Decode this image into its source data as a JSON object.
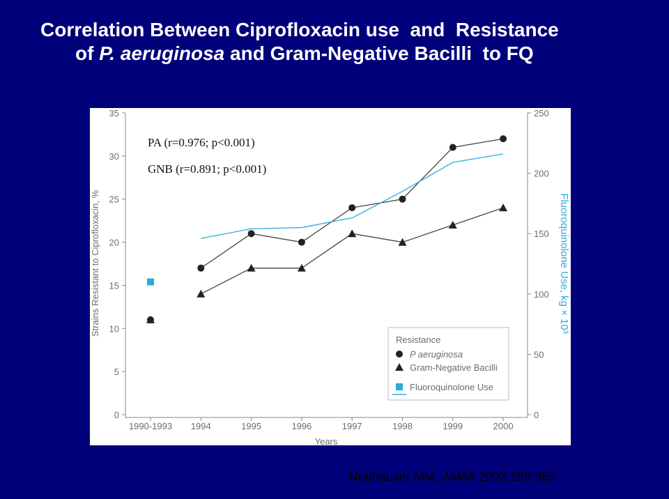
{
  "slide": {
    "title": {
      "line1": "Correlation Between Ciprofloxacin use  and  Resistance",
      "line2": [
        "of ",
        "P. aeruginosa",
        " and Gram-Negative Bacilli  to FQ"
      ]
    },
    "citation": [
      "Neuhauser MM, ",
      "JAMA",
      " 2003;289:885"
    ]
  },
  "chart_data": {
    "type": "line",
    "annotations": [
      "PA (r=0.976; p<0.001)",
      "GNB (r=0.891; p<0.001)"
    ],
    "x_label": "Years",
    "y_label": "Strains Resistant to Ciprofloxacin, %",
    "y2_label": "Fluoroquinolone Use, kg × 10³",
    "legend_title": "Resistance",
    "legend": "lower right",
    "categories": [
      "1990-1993",
      "1994",
      "1995",
      "1996",
      "1997",
      "1998",
      "1999",
      "2000"
    ],
    "ylim": [
      0,
      35
    ],
    "yticks": [
      0,
      5,
      10,
      15,
      20,
      25,
      30,
      35
    ],
    "y2lim": [
      0,
      250
    ],
    "y2ticks": [
      0,
      50,
      100,
      150,
      200,
      250
    ],
    "series": [
      {
        "name": "P aeruginosa",
        "color": "#222222",
        "marker": "circle",
        "values": [
          11,
          17,
          21,
          20,
          24,
          25,
          31,
          32
        ]
      },
      {
        "name": "Gram-Negative Bacilli",
        "color": "#222222",
        "marker": "triangle",
        "values": [
          11,
          14,
          17,
          17,
          21,
          20,
          22,
          24
        ]
      },
      {
        "name": "Fluoroquinolone Use",
        "color": "#29abe2",
        "marker": "square",
        "axis": "y2",
        "values": [
          110,
          146,
          154,
          155,
          163,
          185,
          209,
          216
        ]
      }
    ]
  }
}
